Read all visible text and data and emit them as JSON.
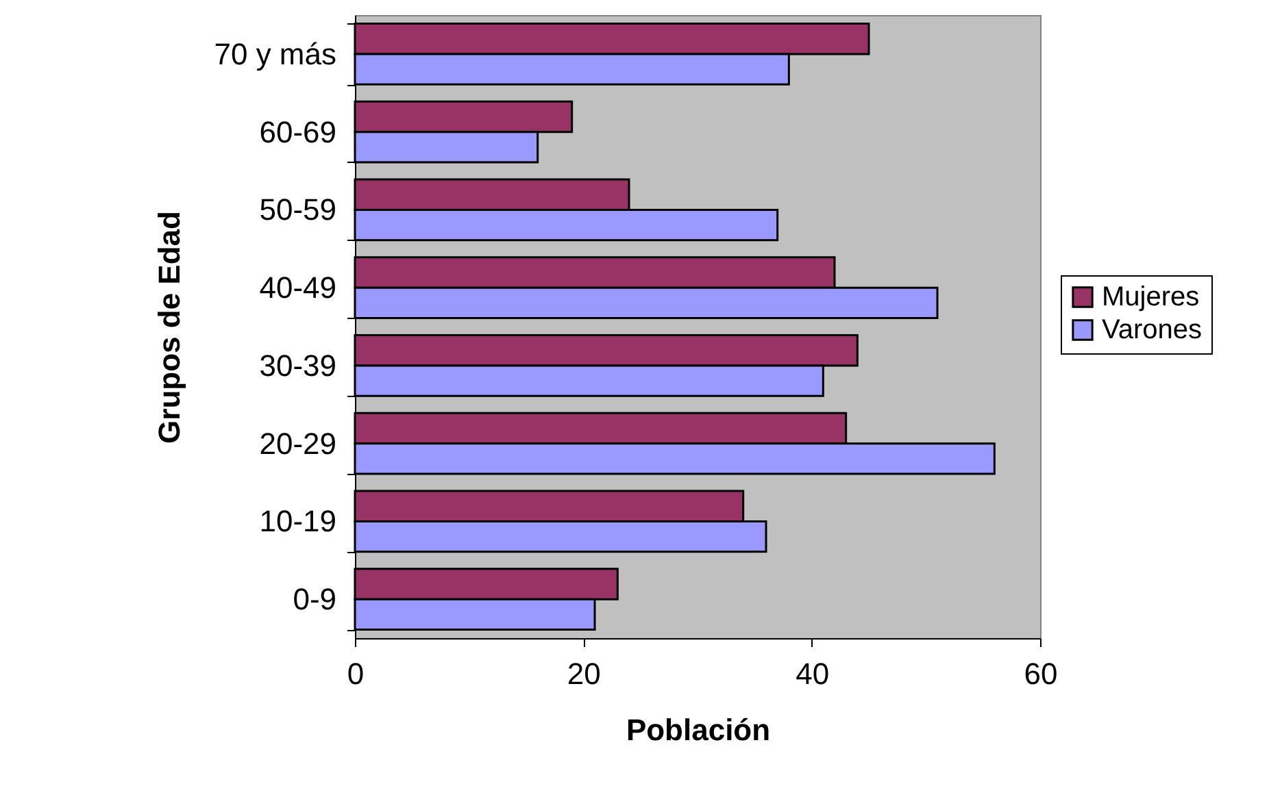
{
  "chart_data": {
    "type": "bar",
    "orientation": "horizontal",
    "xlabel": "Población",
    "ylabel": "Grupos de Edad",
    "categories": [
      "70 y más",
      "60-69",
      "50-59",
      "40-49",
      "30-39",
      "20-29",
      "10-19",
      "0-9"
    ],
    "series": [
      {
        "name": "Mujeres",
        "color": "#993366",
        "values": [
          45,
          19,
          24,
          42,
          44,
          43,
          34,
          23
        ]
      },
      {
        "name": "Varones",
        "color": "#9999ff",
        "values": [
          38,
          16,
          37,
          51,
          41,
          56,
          36,
          21
        ]
      }
    ],
    "xlim": [
      0,
      60
    ],
    "xticks": [
      0,
      20,
      40,
      60
    ],
    "grid": false,
    "legend": "right"
  }
}
